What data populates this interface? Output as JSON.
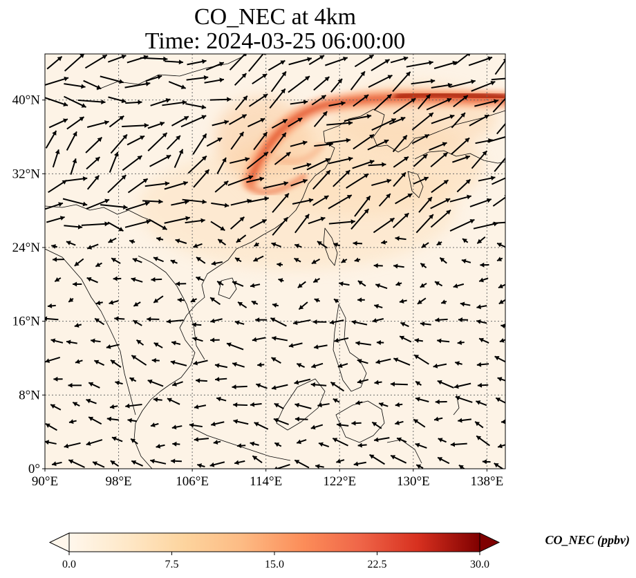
{
  "title_line1": "CO_NEC at 4km",
  "title_line2": "Time: 2024-03-25 06:00:00",
  "map": {
    "lon_range": [
      90,
      140
    ],
    "lat_range": [
      0,
      45
    ],
    "lon_ticks": [
      {
        "value": 90,
        "label": "90°E"
      },
      {
        "value": 98,
        "label": "98°E"
      },
      {
        "value": 106,
        "label": "106°E"
      },
      {
        "value": 114,
        "label": "114°E"
      },
      {
        "value": 122,
        "label": "122°E"
      },
      {
        "value": 130,
        "label": "130°E"
      },
      {
        "value": 138,
        "label": "138°E"
      }
    ],
    "lat_ticks": [
      {
        "value": 0,
        "label": "0°"
      },
      {
        "value": 8,
        "label": "8°N"
      },
      {
        "value": 16,
        "label": "16°N"
      },
      {
        "value": 24,
        "label": "24°N"
      },
      {
        "value": 32,
        "label": "32°N"
      },
      {
        "value": 40,
        "label": "40°N"
      }
    ],
    "gridlines": true,
    "plume_color": "#c0391a",
    "background_color": "#fdf3e6"
  },
  "colorbar": {
    "label": "CO_NEC (ppbv)",
    "min": 0,
    "max": 30,
    "extend": "both",
    "colormap": "OrRd",
    "ticks": [
      {
        "value": 0,
        "label": "0.0"
      },
      {
        "value": 7.5,
        "label": "7.5"
      },
      {
        "value": 15,
        "label": "15.0"
      },
      {
        "value": 22.5,
        "label": "22.5"
      },
      {
        "value": 30,
        "label": "30.0"
      }
    ]
  }
}
